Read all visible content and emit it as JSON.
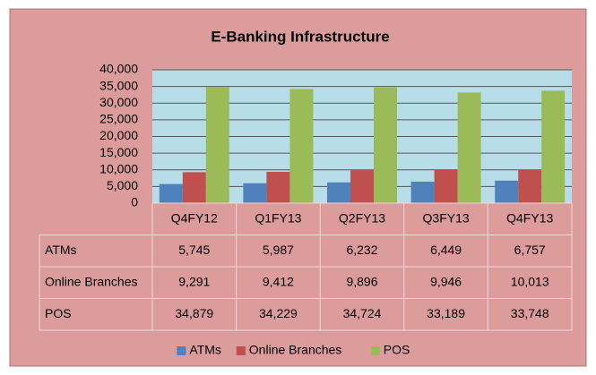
{
  "chart_data": {
    "type": "bar",
    "title": "E-Banking  Infrastructure",
    "categories": [
      "Q4FY12",
      "Q1FY13",
      "Q2FY13",
      "Q3FY13",
      "Q4FY13"
    ],
    "series": [
      {
        "name": "ATMs",
        "color": "#4f81bd",
        "values": [
          5745,
          5987,
          6232,
          6449,
          6757
        ],
        "value_labels": [
          "5,745",
          "5,987",
          "6,232",
          "6,449",
          "6,757"
        ]
      },
      {
        "name": "Online Branches",
        "color": "#c0504d",
        "values": [
          9291,
          9412,
          9896,
          9946,
          10013
        ],
        "value_labels": [
          "9,291",
          "9,412",
          "9,896",
          "9,946",
          "10,013"
        ]
      },
      {
        "name": "POS",
        "color": "#9bbb59",
        "values": [
          34879,
          34229,
          34724,
          33189,
          33748
        ],
        "value_labels": [
          "34,879",
          "34,229",
          "34,724",
          "33,189",
          "33,748"
        ]
      }
    ],
    "ylim": [
      0,
      40000
    ],
    "yticks": [
      0,
      {
        "value": 5000,
        "label": "5,000"
      },
      {
        "value": 10000,
        "label": "10,000"
      },
      {
        "value": 15000,
        "label": "15,000"
      },
      {
        "value": 20000,
        "label": "20,000"
      },
      {
        "value": 25000,
        "label": "25,000"
      },
      {
        "value": 30000,
        "label": "30,000"
      },
      {
        "value": 35000,
        "label": "35,000"
      },
      {
        "value": 40000,
        "label": "40,000"
      }
    ],
    "grid": true,
    "legend": "bottom"
  }
}
